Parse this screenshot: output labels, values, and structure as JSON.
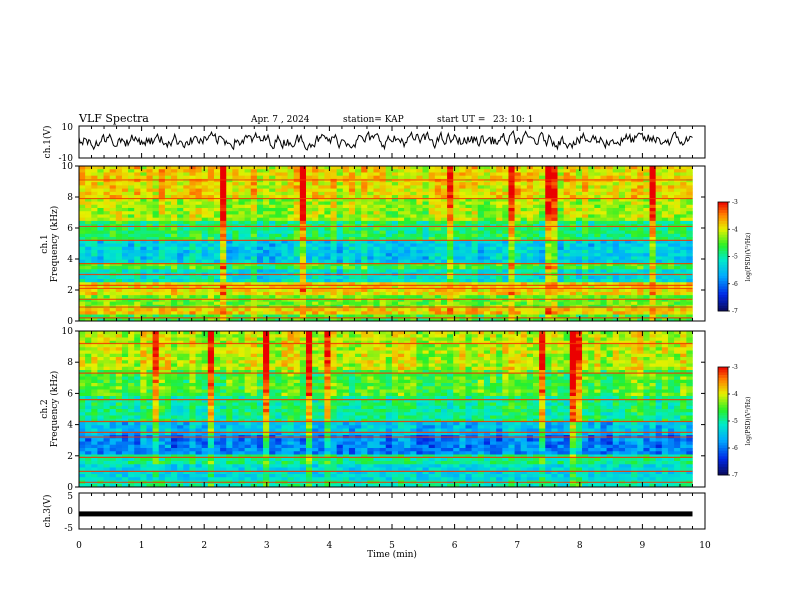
{
  "header": {
    "title": "VLF Spectra",
    "date": "Apr. 7 , 2024",
    "station": "station= KAP",
    "start": "start UT =",
    "start_time": "23: 10: 1"
  },
  "chart_data": [
    {
      "type": "line",
      "panel": "ch1-waveform",
      "ylabel": "ch.1(V)",
      "ylim": [
        -10,
        10
      ],
      "yticks": [
        "10",
        "-10"
      ],
      "xlim": [
        0,
        10
      ],
      "series_color": "#000000",
      "description_values": "voltage waveform oscillating roughly between -4 and 6 V over 0–9.8 min"
    },
    {
      "type": "heatmap",
      "panel": "ch1-spectrogram",
      "ylabel": "ch.1\nFrequency (kHz)",
      "ylabel_lines": [
        "ch.1",
        "Frequency (kHz)"
      ],
      "ylim": [
        0,
        10
      ],
      "yticks": [
        "0",
        "2",
        "4",
        "6",
        "8",
        "10"
      ],
      "xlim": [
        0,
        9.8
      ],
      "colorbar": {
        "label": "log(PSD)(V²/Hz)",
        "ticks": [
          "-3",
          "-4",
          "-5",
          "-6",
          "-7"
        ],
        "range": [
          -7,
          -3
        ]
      },
      "bands": [
        {
          "f0": 0.0,
          "f1": 0.4,
          "level": -4.6
        },
        {
          "f0": 0.4,
          "f1": 0.9,
          "level": -3.8
        },
        {
          "f0": 0.9,
          "f1": 1.6,
          "level": -4.4
        },
        {
          "f0": 1.6,
          "f1": 2.6,
          "level": -3.9
        },
        {
          "f0": 2.6,
          "f1": 3.3,
          "level": -5.2
        },
        {
          "f0": 3.3,
          "f1": 3.8,
          "level": -4.6
        },
        {
          "f0": 3.8,
          "f1": 5.2,
          "level": -5.4
        },
        {
          "f0": 5.2,
          "f1": 6.4,
          "level": -4.8
        },
        {
          "f0": 6.4,
          "f1": 8.0,
          "level": -4.2
        },
        {
          "f0": 8.0,
          "f1": 10.0,
          "level": -3.9
        }
      ],
      "lines_khz": [
        0.2,
        0.9,
        1.4,
        2.1,
        2.3,
        3.0,
        3.7,
        5.2,
        6.1,
        7.9,
        9.1
      ]
    },
    {
      "type": "heatmap",
      "panel": "ch2-spectrogram",
      "ylabel": "ch.2\nFrequency (kHz)",
      "ylabel_lines": [
        "ch.2",
        "Frequency (kHz)"
      ],
      "ylim": [
        0,
        10
      ],
      "yticks": [
        "0",
        "2",
        "4",
        "6",
        "8",
        "10"
      ],
      "xlim": [
        0,
        9.8
      ],
      "colorbar": {
        "label": "log(PSD)(V²/Hz)",
        "ticks": [
          "-3",
          "-4",
          "-5",
          "-6",
          "-7"
        ],
        "range": [
          -7,
          -3
        ]
      },
      "bands": [
        {
          "f0": 0.0,
          "f1": 0.5,
          "level": -5.0
        },
        {
          "f0": 0.5,
          "f1": 1.5,
          "level": -5.3
        },
        {
          "f0": 1.5,
          "f1": 2.1,
          "level": -4.9
        },
        {
          "f0": 2.1,
          "f1": 3.4,
          "level": -5.9
        },
        {
          "f0": 3.4,
          "f1": 4.2,
          "level": -5.5
        },
        {
          "f0": 4.2,
          "f1": 5.8,
          "level": -4.9
        },
        {
          "f0": 5.8,
          "f1": 7.4,
          "level": -4.5
        },
        {
          "f0": 7.4,
          "f1": 10.0,
          "level": -4.1
        }
      ],
      "lines_khz": [
        0.3,
        1.0,
        1.9,
        3.2,
        3.5,
        4.2,
        5.6,
        7.3,
        9.2
      ]
    },
    {
      "type": "line",
      "panel": "ch3-waveform",
      "ylabel": "ch.3(V)",
      "ylim": [
        -5,
        5
      ],
      "yticks": [
        "5",
        "0",
        "-5"
      ],
      "xlim": [
        0,
        10
      ],
      "level": -0.8,
      "series_color": "#000000"
    }
  ],
  "xaxis": {
    "label": "Time (min)",
    "ticks": [
      "0",
      "1",
      "2",
      "3",
      "4",
      "5",
      "6",
      "7",
      "8",
      "9",
      "10"
    ],
    "range": [
      0,
      10
    ]
  }
}
